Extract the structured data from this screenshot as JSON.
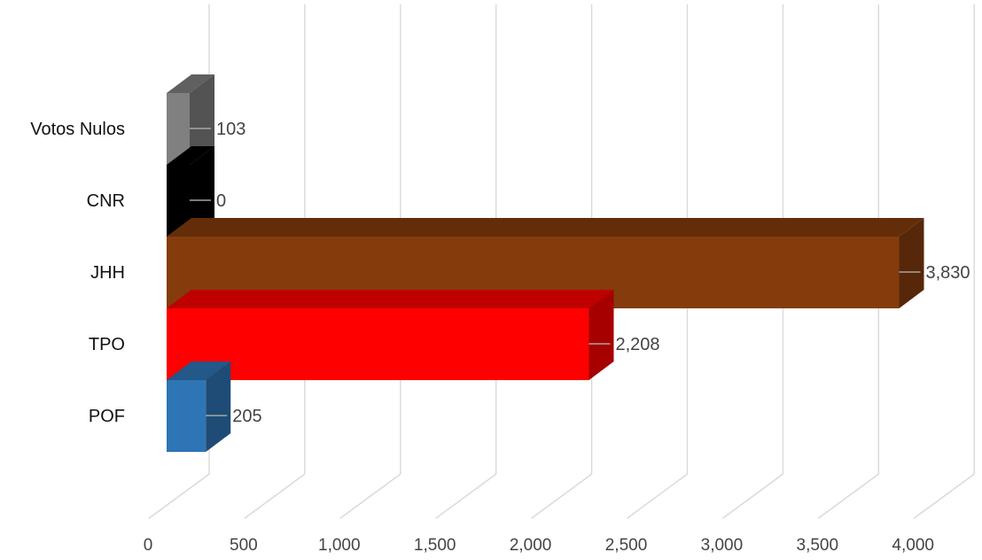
{
  "chart_data": {
    "type": "bar",
    "orientation": "horizontal",
    "style": "3d",
    "categories": [
      "Votos Nulos",
      "CNR",
      "JHH",
      "TPO",
      "POF"
    ],
    "values": [
      103,
      0,
      3830,
      2208,
      205
    ],
    "value_labels": [
      "103",
      "0",
      "3,830",
      "2,208",
      "205"
    ],
    "colors": [
      "#808080",
      "#000000",
      "#843C0C",
      "#FF0000",
      "#2E75B6"
    ],
    "x_ticks": [
      "0",
      "500",
      "1,000",
      "1,500",
      "2,000",
      "2,500",
      "3,000",
      "3,500",
      "4,000"
    ],
    "xlim": [
      0,
      4000
    ],
    "grid": true,
    "legend": "none",
    "title": "",
    "xlabel": "",
    "ylabel": ""
  }
}
